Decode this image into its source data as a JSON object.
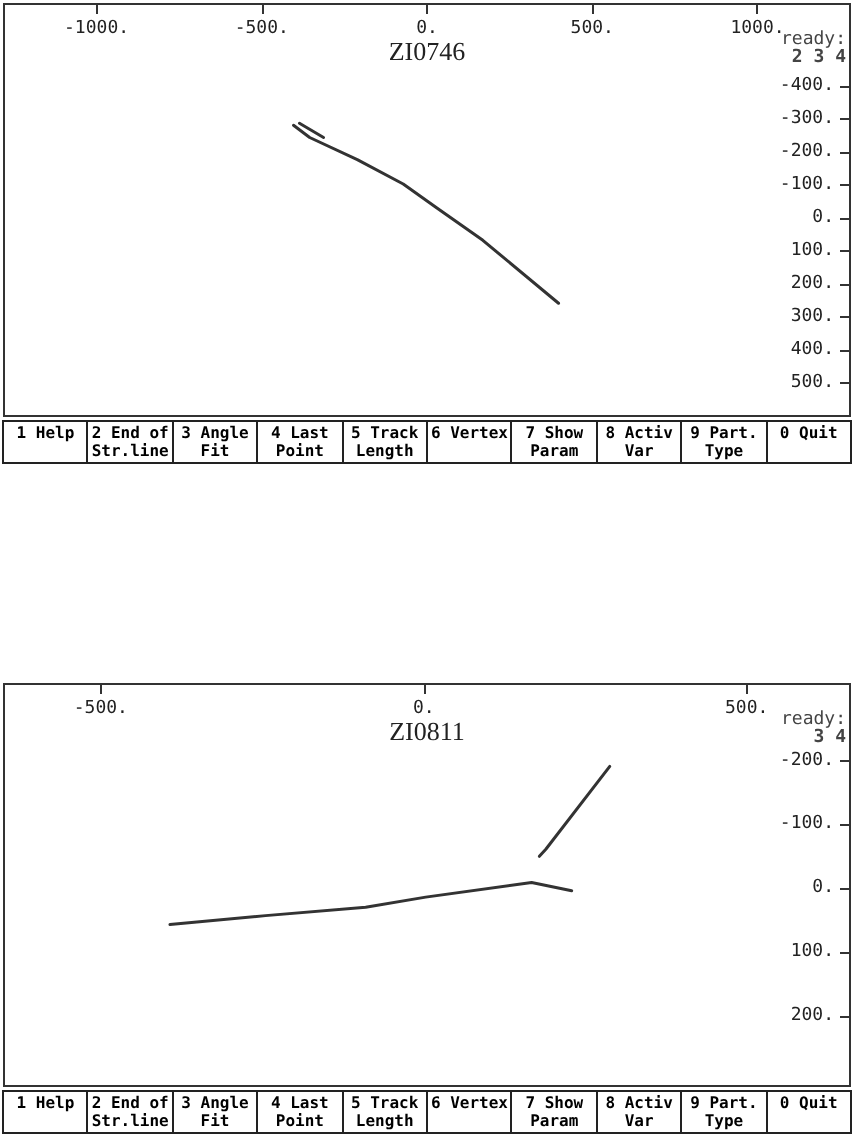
{
  "chart_data": [
    {
      "type": "line",
      "title": "ZI0746",
      "xlim": [
        -1280,
        1280
      ],
      "ylim": [
        600,
        -650
      ],
      "xticks": [
        {
          "value": -1000,
          "label": "-1000."
        },
        {
          "value": -500,
          "label": "-500."
        },
        {
          "value": 0,
          "label": "0."
        },
        {
          "value": 500,
          "label": "500."
        },
        {
          "value": 1000,
          "label": "1000."
        }
      ],
      "yticks": [
        {
          "value": -400,
          "label": "-400."
        },
        {
          "value": -300,
          "label": "-300."
        },
        {
          "value": -200,
          "label": "-200."
        },
        {
          "value": -100,
          "label": "-100."
        },
        {
          "value": 0,
          "label": "0."
        },
        {
          "value": 100,
          "label": "100."
        },
        {
          "value": 200,
          "label": "200."
        },
        {
          "value": 300,
          "label": "300."
        },
        {
          "value": 400,
          "label": "400."
        },
        {
          "value": 500,
          "label": "500."
        }
      ],
      "marker": "none",
      "line_style": "solid",
      "grid": false,
      "series": [
        {
          "color": "#333333",
          "x": [
            -404,
            -355,
            -211,
            -72,
            30,
            169,
            398
          ],
          "values": [
            -282,
            -245,
            -178,
            -104,
            -31,
            67,
            258
          ]
        },
        {
          "color": "#333333",
          "x": [
            -386,
            -313
          ],
          "values": [
            -288,
            -245
          ]
        }
      ],
      "annotations": [
        "ready:",
        "2 3 4",
        "1 Help",
        "2 End of Str.line",
        "3 Angle Fit",
        "4 Last Point",
        "5 Track Length",
        "6 Vertex",
        "7 Show Param",
        "8 Activ Var",
        "9 Part. Type",
        "0 Quit"
      ]
    },
    {
      "type": "line",
      "title": "ZI0811",
      "xlim": [
        -650,
        660
      ],
      "ylim": [
        310,
        -320
      ],
      "xticks": [
        {
          "value": -500,
          "label": "-500."
        },
        {
          "value": 0,
          "label": "0."
        },
        {
          "value": 500,
          "label": "500."
        }
      ],
      "yticks": [
        {
          "value": -200,
          "label": "-200."
        },
        {
          "value": -100,
          "label": "-100."
        },
        {
          "value": 0,
          "label": "0."
        },
        {
          "value": 100,
          "label": "100."
        },
        {
          "value": 200,
          "label": "200."
        }
      ],
      "marker": "none",
      "line_style": "solid",
      "grid": false,
      "series": [
        {
          "color": "#333333",
          "x": [
            -393,
            -245,
            -90,
            3,
            167,
            229
          ],
          "values": [
            57,
            43,
            30,
            14,
            -9,
            4
          ]
        },
        {
          "color": "#333333",
          "x": [
            179,
            189,
            288
          ],
          "values": [
            -50,
            -61,
            -191
          ]
        }
      ],
      "annotations": [
        "ready:",
        "3 4",
        "1 Help",
        "2 End of Str.line",
        "3 Angle Fit",
        "4 Last Point",
        "5 Track Length",
        "6 Vertex",
        "7 Show Param",
        "8 Activ Var",
        "9 Part. Type",
        "0 Quit"
      ]
    }
  ]
}
